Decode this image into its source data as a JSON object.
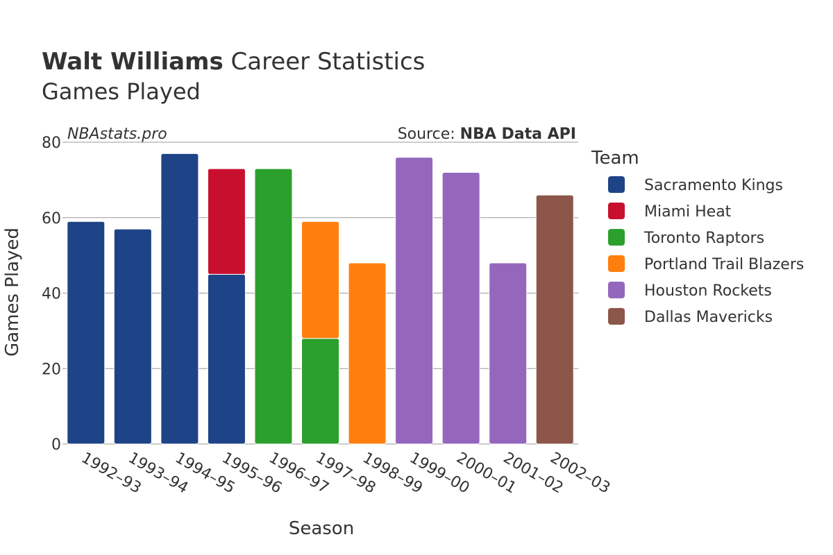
{
  "header": {
    "title_bold": "Walt Williams",
    "title_rest": " Career Statistics",
    "subtitle": "Games Played"
  },
  "credits": {
    "site": "NBAstats.pro",
    "source_prefix": "Source: ",
    "source_name": "NBA Data API"
  },
  "legend": {
    "title": "Team"
  },
  "colors": {
    "Sacramento Kings": "#1e4387",
    "Miami Heat": "#c8102e",
    "Toronto Raptors": "#2ca02c",
    "Portland Trail Blazers": "#ff7f0e",
    "Houston Rockets": "#9467bd",
    "Dallas Mavericks": "#8c564b"
  },
  "chart_data": {
    "type": "bar",
    "stacked": true,
    "xlabel": "Season",
    "ylabel": "Games Played",
    "ylim": [
      0,
      80
    ],
    "yticks": [
      0,
      20,
      40,
      60,
      80
    ],
    "grid": true,
    "legend_position": "right",
    "categories": [
      "1992–93",
      "1993–94",
      "1994–95",
      "1995–96",
      "1996–97",
      "1997–98",
      "1998–99",
      "1999–00",
      "2000–01",
      "2001–02",
      "2002–03"
    ],
    "series": [
      {
        "name": "Sacramento Kings",
        "values": [
          59,
          57,
          77,
          45,
          0,
          0,
          0,
          0,
          0,
          0,
          0
        ]
      },
      {
        "name": "Miami Heat",
        "values": [
          0,
          0,
          0,
          28,
          0,
          0,
          0,
          0,
          0,
          0,
          0
        ]
      },
      {
        "name": "Toronto Raptors",
        "values": [
          0,
          0,
          0,
          0,
          73,
          28,
          0,
          0,
          0,
          0,
          0
        ]
      },
      {
        "name": "Portland Trail Blazers",
        "values": [
          0,
          0,
          0,
          0,
          0,
          31,
          48,
          0,
          0,
          0,
          0
        ]
      },
      {
        "name": "Houston Rockets",
        "values": [
          0,
          0,
          0,
          0,
          0,
          0,
          0,
          76,
          72,
          48,
          0
        ]
      },
      {
        "name": "Dallas Mavericks",
        "values": [
          0,
          0,
          0,
          0,
          0,
          0,
          0,
          0,
          0,
          0,
          66
        ]
      }
    ]
  }
}
